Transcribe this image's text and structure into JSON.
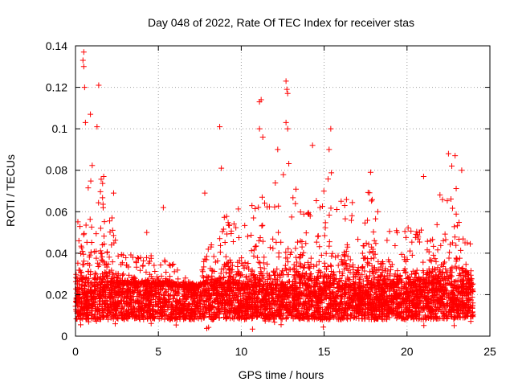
{
  "chart_data": {
    "type": "scatter",
    "title": "Day 048 of 2022, Rate Of TEC Index for receiver stas",
    "xlabel": "GPS time / hours",
    "ylabel": "ROTI / TECUs",
    "xlim": [
      0,
      25
    ],
    "ylim": [
      0,
      0.14
    ],
    "xticks": [
      0,
      5,
      10,
      15,
      20,
      25
    ],
    "xtick_labels": [
      "0",
      "5",
      "10",
      "15",
      "20",
      "25"
    ],
    "yticks": [
      0,
      0.02,
      0.04,
      0.06,
      0.08,
      0.1,
      0.12,
      0.14
    ],
    "ytick_labels": [
      "0",
      "0.02",
      "0.04",
      "0.06",
      "0.08",
      "0.1",
      "0.12",
      "0.14"
    ],
    "grid": true,
    "marker": "+",
    "color": "#ff0000",
    "x_data_range": [
      0,
      24
    ],
    "baseline_band": [
      0.008,
      0.025
    ],
    "notable_points": [
      {
        "x": 0.5,
        "y": 0.137
      },
      {
        "x": 0.45,
        "y": 0.133
      },
      {
        "x": 0.5,
        "y": 0.13
      },
      {
        "x": 0.55,
        "y": 0.12
      },
      {
        "x": 1.4,
        "y": 0.121
      },
      {
        "x": 0.9,
        "y": 0.107
      },
      {
        "x": 1.3,
        "y": 0.101
      },
      {
        "x": 0.6,
        "y": 0.103
      },
      {
        "x": 1.7,
        "y": 0.077
      },
      {
        "x": 2.3,
        "y": 0.069
      },
      {
        "x": 2.2,
        "y": 0.057
      },
      {
        "x": 4.3,
        "y": 0.05
      },
      {
        "x": 5.3,
        "y": 0.062
      },
      {
        "x": 7.8,
        "y": 0.069
      },
      {
        "x": 8.7,
        "y": 0.101
      },
      {
        "x": 8.8,
        "y": 0.081
      },
      {
        "x": 11.1,
        "y": 0.113
      },
      {
        "x": 11.2,
        "y": 0.114
      },
      {
        "x": 11.1,
        "y": 0.1
      },
      {
        "x": 11.3,
        "y": 0.096
      },
      {
        "x": 12.7,
        "y": 0.123
      },
      {
        "x": 12.75,
        "y": 0.119
      },
      {
        "x": 12.8,
        "y": 0.117
      },
      {
        "x": 12.7,
        "y": 0.103
      },
      {
        "x": 12.8,
        "y": 0.1
      },
      {
        "x": 12.2,
        "y": 0.09
      },
      {
        "x": 14.3,
        "y": 0.092
      },
      {
        "x": 15.4,
        "y": 0.1
      },
      {
        "x": 15.3,
        "y": 0.09
      },
      {
        "x": 17.8,
        "y": 0.079
      },
      {
        "x": 21.0,
        "y": 0.077
      },
      {
        "x": 22.5,
        "y": 0.088
      },
      {
        "x": 22.9,
        "y": 0.087
      },
      {
        "x": 22.7,
        "y": 0.082
      },
      {
        "x": 23.3,
        "y": 0.08
      },
      {
        "x": 23.5,
        "y": 0.045
      }
    ],
    "envelope": [
      {
        "x": 0.0,
        "y": 0.045
      },
      {
        "x": 0.3,
        "y": 0.07
      },
      {
        "x": 0.6,
        "y": 0.09
      },
      {
        "x": 1.0,
        "y": 0.09
      },
      {
        "x": 1.5,
        "y": 0.08
      },
      {
        "x": 2.0,
        "y": 0.06
      },
      {
        "x": 2.5,
        "y": 0.045
      },
      {
        "x": 3.0,
        "y": 0.04
      },
      {
        "x": 3.5,
        "y": 0.04
      },
      {
        "x": 4.0,
        "y": 0.038
      },
      {
        "x": 4.5,
        "y": 0.04
      },
      {
        "x": 5.0,
        "y": 0.035
      },
      {
        "x": 5.5,
        "y": 0.04
      },
      {
        "x": 6.0,
        "y": 0.035
      },
      {
        "x": 6.5,
        "y": 0.03
      },
      {
        "x": 7.0,
        "y": 0.025
      },
      {
        "x": 7.5,
        "y": 0.03
      },
      {
        "x": 8.0,
        "y": 0.045
      },
      {
        "x": 8.5,
        "y": 0.05
      },
      {
        "x": 9.0,
        "y": 0.06
      },
      {
        "x": 9.5,
        "y": 0.055
      },
      {
        "x": 10.0,
        "y": 0.065
      },
      {
        "x": 10.5,
        "y": 0.06
      },
      {
        "x": 11.0,
        "y": 0.08
      },
      {
        "x": 11.5,
        "y": 0.07
      },
      {
        "x": 12.0,
        "y": 0.08
      },
      {
        "x": 12.5,
        "y": 0.085
      },
      {
        "x": 13.0,
        "y": 0.085
      },
      {
        "x": 13.5,
        "y": 0.07
      },
      {
        "x": 14.0,
        "y": 0.06
      },
      {
        "x": 14.5,
        "y": 0.07
      },
      {
        "x": 15.0,
        "y": 0.075
      },
      {
        "x": 15.5,
        "y": 0.08
      },
      {
        "x": 16.0,
        "y": 0.07
      },
      {
        "x": 16.5,
        "y": 0.065
      },
      {
        "x": 17.0,
        "y": 0.065
      },
      {
        "x": 17.5,
        "y": 0.07
      },
      {
        "x": 18.0,
        "y": 0.07
      },
      {
        "x": 18.5,
        "y": 0.06
      },
      {
        "x": 19.0,
        "y": 0.055
      },
      {
        "x": 19.5,
        "y": 0.05
      },
      {
        "x": 20.0,
        "y": 0.055
      },
      {
        "x": 20.5,
        "y": 0.05
      },
      {
        "x": 21.0,
        "y": 0.06
      },
      {
        "x": 21.5,
        "y": 0.045
      },
      {
        "x": 22.0,
        "y": 0.07
      },
      {
        "x": 22.5,
        "y": 0.08
      },
      {
        "x": 23.0,
        "y": 0.08
      },
      {
        "x": 23.5,
        "y": 0.06
      },
      {
        "x": 24.0,
        "y": 0.04
      }
    ]
  }
}
